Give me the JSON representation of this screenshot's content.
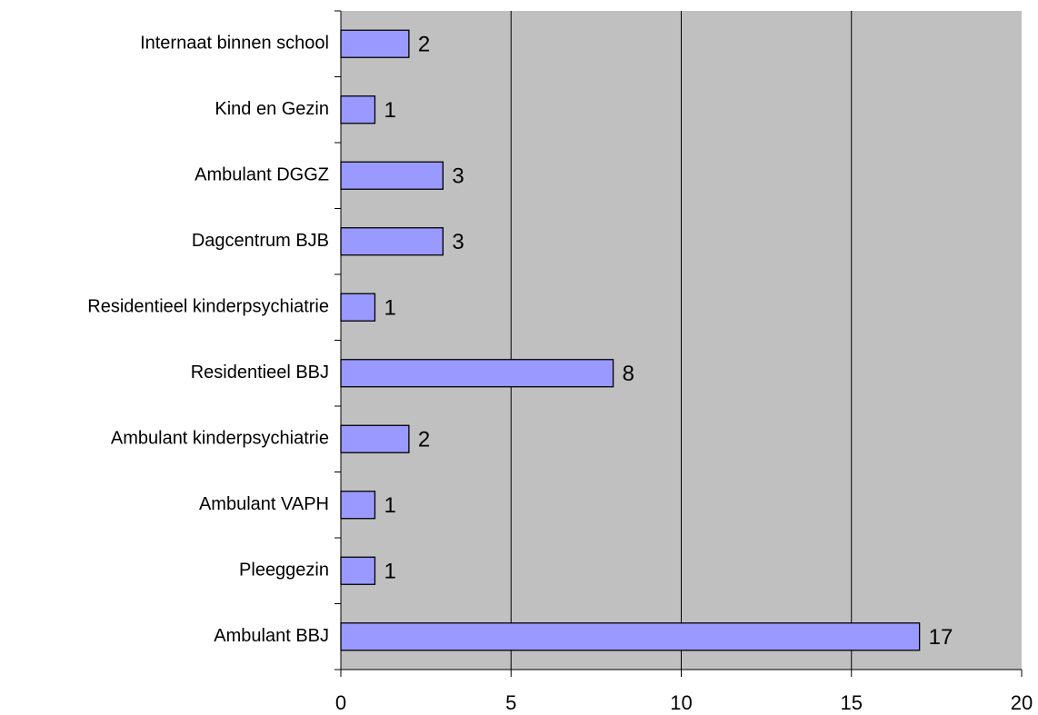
{
  "chart_data": {
    "type": "bar",
    "orientation": "horizontal",
    "categories": [
      "Internaat binnen school",
      "Kind en Gezin",
      "Ambulant DGGZ",
      "Dagcentrum BJB",
      "Residentieel kinderpsychiatrie",
      "Residentieel BBJ",
      "Ambulant kinderpsychiatrie",
      "Ambulant VAPH",
      "Pleeggezin",
      "Ambulant BBJ"
    ],
    "values": [
      2,
      1,
      3,
      3,
      1,
      8,
      2,
      1,
      1,
      17
    ],
    "color": "#9999ff",
    "background": "#c0c0c0",
    "xlim": [
      0,
      20
    ],
    "xticks": [
      0,
      5,
      10,
      15,
      20
    ],
    "grid": true,
    "data_labels": true
  }
}
